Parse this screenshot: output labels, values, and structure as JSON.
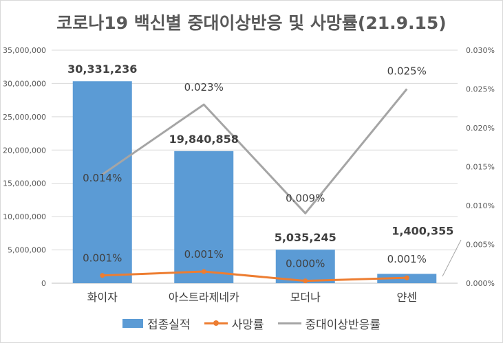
{
  "chart_data": {
    "type": "bar",
    "title": "코로나19 백신별 중대이상반응 및 사망률(21.9.15)",
    "categories": [
      "화이자",
      "아스트라제네카",
      "모더나",
      "얀센"
    ],
    "series": [
      {
        "name": "접종실적",
        "kind": "bar",
        "axis": "left",
        "color": "#5b9bd5",
        "values": [
          30331236,
          19840858,
          5035245,
          1400355
        ],
        "labels": [
          "30,331,236",
          "19,840,858",
          "5,035,245",
          "1,400,355"
        ]
      },
      {
        "name": "사망률",
        "kind": "line-marker",
        "axis": "right",
        "color": "#ed7d31",
        "values": [
          0.001,
          0.0015,
          0.0003,
          0.0007
        ],
        "labels": [
          "0.001%",
          "0.001%",
          "0.000%",
          "0.001%"
        ]
      },
      {
        "name": "중대이상반응률",
        "kind": "line",
        "axis": "right",
        "color": "#a5a5a5",
        "values": [
          0.014,
          0.023,
          0.009,
          0.025
        ],
        "labels": [
          "0.014%",
          "0.023%",
          "0.009%",
          "0.025%"
        ]
      }
    ],
    "y_left": {
      "range": [
        0,
        35000000
      ],
      "ticks": [
        0,
        5000000,
        10000000,
        15000000,
        20000000,
        25000000,
        30000000,
        35000000
      ],
      "tick_labels": [
        "0",
        "5,000,000",
        "10,000,000",
        "15,000,000",
        "20,000,000",
        "25,000,000",
        "30,000,000",
        "35,000,000"
      ]
    },
    "y_right": {
      "range": [
        0,
        0.03
      ],
      "ticks": [
        0,
        0.005,
        0.01,
        0.015,
        0.02,
        0.025,
        0.03
      ],
      "tick_labels": [
        "0.000%",
        "0.005%",
        "0.010%",
        "0.015%",
        "0.020%",
        "0.025%",
        "0.030%"
      ]
    },
    "grid": true,
    "legend": "bottom"
  }
}
